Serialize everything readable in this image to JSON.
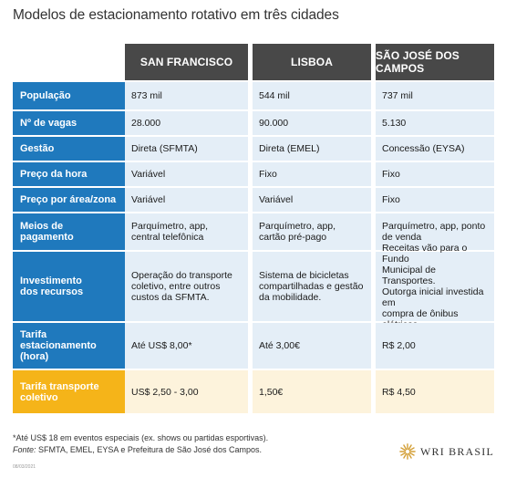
{
  "title": "Modelos de estacionamento rotativo em três cidades",
  "columns": [
    "SAN FRANCISCO",
    "LISBOA",
    "SÃO JOSÉ DOS CAMPOS"
  ],
  "rows": [
    {
      "label": "População",
      "values": [
        "873 mil",
        "544 mil",
        "737 mil"
      ]
    },
    {
      "label": "Nº de vagas",
      "values": [
        "28.000",
        "90.000",
        "5.130"
      ]
    },
    {
      "label": "Gestão",
      "values": [
        "Direta (SFMTA)",
        "Direta (EMEL)",
        "Concessão (EYSA)"
      ]
    },
    {
      "label": "Preço da hora",
      "values": [
        "Variável",
        "Fixo",
        "Fixo"
      ]
    },
    {
      "label": "Preço por área/zona",
      "values": [
        "Variável",
        "Variável",
        "Fixo"
      ]
    },
    {
      "label": "Meios de\npagamento",
      "values": [
        "Parquímetro, app,\ncentral telefônica",
        "Parquímetro, app,\ncartão pré-pago",
        "Parquímetro, app, ponto\nde venda"
      ]
    },
    {
      "label": "Investimento\ndos recursos",
      "values": [
        "Operação do transporte\ncoletivo, entre outros\ncustos da SFMTA.",
        "Sistema de bicicletas\ncompartilhadas e gestão\nda mobilidade.",
        "Receitas vão para o Fundo\nMunicipal de Transportes.\nOutorga inicial investida em\ncompra de ônibus elétricos."
      ]
    },
    {
      "label": "Tarifa\nestacionamento\n(hora)",
      "values": [
        "Até US$ 8,00*",
        "Até 3,00€",
        "R$ 2,00"
      ]
    },
    {
      "label": "Tarifa transporte\ncoletivo",
      "values": [
        "US$ 2,50 - 3,00",
        "1,50€",
        "R$ 4,50"
      ]
    }
  ],
  "footnote": "*Até US$ 18 em eventos especiais (ex. shows ou partidas esportivas).",
  "source_label": "Fonte:",
  "source_text": " SFMTA, EMEL, EYSA e Prefeitura de São José dos Campos.",
  "date": "08/03/2021",
  "logo": {
    "text": "WRI BRASIL",
    "icon": "wri-sun-logo-icon",
    "color": "#d4a13a"
  },
  "colors": {
    "header": "#484848",
    "label": "#1f79bd",
    "cell": "#e4eef7",
    "highlight_label": "#f5b419",
    "highlight_cell": "#fdf3dc"
  }
}
